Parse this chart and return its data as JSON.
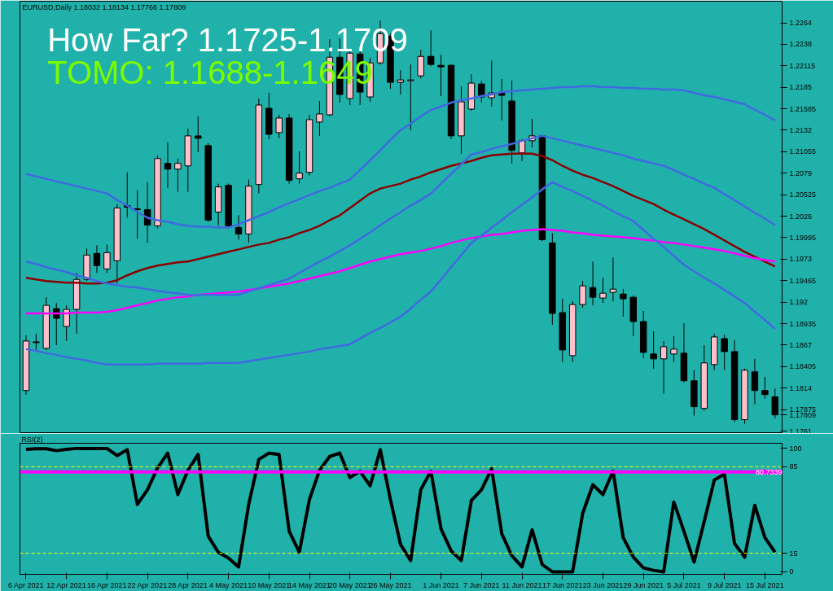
{
  "chart_data": [
    {
      "type": "candlestick",
      "title": "EURUSD,Daily  1.18032 1.18134 1.17766 1.17809",
      "categories": [
        null,
        null,
        null,
        null,
        null,
        null,
        null,
        null,
        null,
        null,
        null,
        null,
        null,
        null,
        null,
        null,
        null,
        null,
        null,
        null,
        null,
        null,
        null,
        null,
        null,
        null,
        null,
        null,
        null,
        null,
        null,
        null,
        null,
        null,
        null,
        null,
        null,
        null,
        null,
        null,
        null,
        null,
        null,
        null,
        null,
        null,
        null,
        null,
        null,
        null,
        null,
        null,
        null,
        null,
        null,
        null,
        null,
        null,
        null,
        null,
        null,
        null,
        null,
        null,
        null,
        null,
        null,
        null,
        null,
        null,
        null,
        null,
        null,
        null,
        null
      ],
      "ohlc": [
        [
          1.1811,
          1.1879,
          1.1806,
          1.1872
        ],
        [
          1.1871,
          1.1881,
          1.1861,
          1.187
        ],
        [
          1.1863,
          1.1926,
          1.1861,
          1.1916
        ],
        [
          1.1912,
          1.1919,
          1.1867,
          1.19
        ],
        [
          1.189,
          1.1916,
          1.1872,
          1.1911
        ],
        [
          1.1911,
          1.1956,
          1.1881,
          1.1948
        ],
        [
          1.1948,
          1.1986,
          1.1946,
          1.1978
        ],
        [
          1.198,
          1.199,
          1.1956,
          1.1965
        ],
        [
          1.1961,
          1.1991,
          1.1956,
          1.1981
        ],
        [
          1.1971,
          1.2041,
          1.1943,
          1.2036
        ],
        [
          1.2039,
          1.208,
          1.2024,
          1.2037
        ],
        [
          1.2035,
          1.2058,
          1.1998,
          1.2034
        ],
        [
          1.2034,
          1.2068,
          1.1993,
          1.2015
        ],
        [
          1.2014,
          1.2101,
          1.2011,
          1.2097
        ],
        [
          1.2091,
          1.2117,
          1.2061,
          1.2084
        ],
        [
          1.2084,
          1.2097,
          1.2056,
          1.2091
        ],
        [
          1.2088,
          1.2134,
          1.2056,
          1.2125
        ],
        [
          1.2125,
          1.2149,
          1.2105,
          1.2122
        ],
        [
          1.2113,
          1.2116,
          1.2019,
          1.2021
        ],
        [
          1.2031,
          1.2066,
          1.2014,
          1.2062
        ],
        [
          1.2064,
          1.2066,
          1.2011,
          1.2014
        ],
        [
          1.2012,
          1.2027,
          1.1997,
          1.2004
        ],
        [
          1.2004,
          1.2071,
          1.1993,
          1.2063
        ],
        [
          1.2065,
          1.2171,
          1.2054,
          1.2163
        ],
        [
          1.2159,
          1.2178,
          1.2121,
          1.2127
        ],
        [
          1.2129,
          1.2151,
          1.2122,
          1.2147
        ],
        [
          1.2147,
          1.2152,
          1.2066,
          1.207
        ],
        [
          1.2072,
          1.2106,
          1.2066,
          1.2079
        ],
        [
          1.208,
          1.2151,
          1.2076,
          1.2145
        ],
        [
          1.2142,
          1.2168,
          1.2125,
          1.2152
        ],
        [
          1.2151,
          1.2244,
          1.2149,
          1.2222
        ],
        [
          1.2222,
          1.2245,
          1.2166,
          1.2176
        ],
        [
          1.2171,
          1.2229,
          1.2163,
          1.2227
        ],
        [
          1.2226,
          1.2231,
          1.2163,
          1.2179
        ],
        [
          1.2173,
          1.2221,
          1.2167,
          1.2215
        ],
        [
          1.2215,
          1.2267,
          1.2213,
          1.2251
        ],
        [
          1.2248,
          1.2251,
          1.2183,
          1.2191
        ],
        [
          1.2191,
          1.2206,
          1.2176,
          1.2194
        ],
        [
          1.2193,
          1.2213,
          1.2132,
          1.2194
        ],
        [
          1.2199,
          1.2231,
          1.2196,
          1.2223
        ],
        [
          1.2223,
          1.2255,
          1.2211,
          1.2213
        ],
        [
          1.2212,
          1.2225,
          1.2174,
          1.221
        ],
        [
          1.2212,
          1.2213,
          1.2121,
          1.2125
        ],
        [
          1.2125,
          1.2186,
          1.2103,
          1.2167
        ],
        [
          1.2158,
          1.2201,
          1.2156,
          1.219
        ],
        [
          1.2189,
          1.2193,
          1.2166,
          1.2173
        ],
        [
          1.2172,
          1.2218,
          1.2161,
          1.2178
        ],
        [
          1.2178,
          1.2195,
          1.2144,
          1.2175
        ],
        [
          1.2168,
          1.2193,
          1.2091,
          1.2107
        ],
        [
          1.2104,
          1.2121,
          1.2094,
          1.2119
        ],
        [
          1.2119,
          1.2146,
          1.2111,
          1.2125
        ],
        [
          1.2125,
          1.2126,
          1.1995,
          1.1997
        ],
        [
          1.1993,
          1.2005,
          1.1892,
          1.1906
        ],
        [
          1.1907,
          1.1924,
          1.1846,
          1.1861
        ],
        [
          1.1854,
          1.1921,
          1.1846,
          1.1917
        ],
        [
          1.1917,
          1.1946,
          1.1913,
          1.194
        ],
        [
          1.1938,
          1.197,
          1.1916,
          1.1926
        ],
        [
          1.1925,
          1.195,
          1.1919,
          1.1931
        ],
        [
          1.1932,
          1.1975,
          1.1921,
          1.1936
        ],
        [
          1.193,
          1.1936,
          1.1902,
          1.1924
        ],
        [
          1.1926,
          1.1928,
          1.1878,
          1.1896
        ],
        [
          1.1896,
          1.1909,
          1.1851,
          1.1858
        ],
        [
          1.1856,
          1.1884,
          1.1838,
          1.185
        ],
        [
          1.185,
          1.1872,
          1.1807,
          1.1865
        ],
        [
          1.1856,
          1.1878,
          1.1846,
          1.1862
        ],
        [
          1.1857,
          1.1894,
          1.1821,
          1.1823
        ],
        [
          1.1823,
          1.1836,
          1.178,
          1.1791
        ],
        [
          1.1789,
          1.1867,
          1.1786,
          1.1845
        ],
        [
          1.1843,
          1.1881,
          1.1836,
          1.1877
        ],
        [
          1.1875,
          1.188,
          1.1836,
          1.1859
        ],
        [
          1.1859,
          1.1873,
          1.1772,
          1.1775
        ],
        [
          1.1775,
          1.1838,
          1.177,
          1.1836
        ],
        [
          1.1834,
          1.185,
          1.1794,
          1.1811
        ],
        [
          1.1811,
          1.1828,
          1.1801,
          1.1806
        ],
        [
          1.18032,
          1.18134,
          1.17766,
          1.17809
        ]
      ],
      "series": [
        {
          "type": "line",
          "color": "#8b0000",
          "values": [
            1.195,
            1.1948,
            1.1946,
            1.1945,
            1.1944,
            1.1944,
            1.1943,
            1.1943,
            1.1944,
            1.1947,
            1.1953,
            1.1958,
            1.1962,
            1.1965,
            1.1967,
            1.1969,
            1.197,
            1.1973,
            1.1976,
            1.1979,
            1.1982,
            1.1985,
            1.1988,
            1.1991,
            1.1993,
            1.1997,
            1.2,
            1.2005,
            1.2009,
            1.2014,
            1.2021,
            1.2027,
            1.2036,
            1.2045,
            1.2054,
            1.206,
            1.2063,
            1.2066,
            1.2071,
            1.2075,
            1.208,
            1.2084,
            1.2088,
            1.2091,
            1.2094,
            1.2098,
            1.2101,
            1.2102,
            1.2103,
            1.2103,
            1.2103,
            1.21,
            1.2095,
            1.2088,
            1.2082,
            1.2077,
            1.2073,
            1.2068,
            1.2063,
            1.2057,
            1.2051,
            1.2046,
            1.2041,
            1.2034,
            1.2028,
            1.2022,
            1.2016,
            1.201,
            1.2003,
            1.1996,
            1.1989,
            1.1982,
            1.1976,
            1.197,
            1.1964
          ]
        },
        {
          "type": "line",
          "color": "#ff00ff",
          "values": [
            1.1906,
            1.1906,
            1.1906,
            1.1906,
            1.1906,
            1.1907,
            1.1907,
            1.1907,
            1.1908,
            1.191,
            1.1913,
            1.1916,
            1.1919,
            1.1922,
            1.1924,
            1.1926,
            1.1927,
            1.1929,
            1.193,
            1.1931,
            1.1932,
            1.1933,
            1.1935,
            1.1937,
            1.1939,
            1.1941,
            1.1943,
            1.1946,
            1.1949,
            1.1952,
            1.1955,
            1.1958,
            1.1962,
            1.1966,
            1.197,
            1.1973,
            1.1976,
            1.1979,
            1.1981,
            1.1983,
            1.1986,
            1.1989,
            1.1993,
            1.1996,
            1.1999,
            1.2001,
            1.2003,
            1.2004,
            1.2006,
            1.2008,
            1.2009,
            1.201,
            1.2009,
            1.2008,
            1.2006,
            1.2005,
            1.2003,
            1.2002,
            1.2001,
            1.2,
            1.1999,
            1.1997,
            1.1996,
            1.1994,
            1.1993,
            1.1991,
            1.1989,
            1.1987,
            1.1985,
            1.1983,
            1.198,
            1.1977,
            1.1974,
            1.1972,
            1.197
          ]
        },
        {
          "type": "line",
          "color": "#4169e1",
          "values": [
            1.2078,
            1.2075,
            1.2072,
            1.2069,
            1.2066,
            1.2063,
            1.206,
            1.2057,
            1.2054,
            1.2046,
            1.2039,
            1.2031,
            1.2024,
            1.2021,
            1.2019,
            1.2016,
            1.2014,
            1.2013,
            1.2013,
            1.2012,
            1.2012,
            1.2016,
            1.2021,
            1.2026,
            1.2031,
            1.2037,
            1.2042,
            1.2047,
            1.2052,
            1.2057,
            1.2061,
            1.2066,
            1.2071,
            1.2083,
            1.2095,
            1.2107,
            1.212,
            1.2132,
            1.214,
            1.2149,
            1.2157,
            1.2161,
            1.2166,
            1.2169,
            1.2171,
            1.2174,
            1.2176,
            1.2179,
            1.218,
            1.2181,
            1.2182,
            1.2183,
            1.2184,
            1.2185,
            1.2185,
            1.2186,
            1.2186,
            1.2185,
            1.2185,
            1.2184,
            1.2184,
            1.2183,
            1.2183,
            1.2182,
            1.2182,
            1.2181,
            1.2178,
            1.2175,
            1.2173,
            1.217,
            1.2167,
            1.2164,
            1.2157,
            1.2151,
            1.2144
          ]
        },
        {
          "type": "line",
          "color": "#4169e1",
          "values": [
            1.197,
            1.1967,
            1.1963,
            1.196,
            1.1957,
            1.1953,
            1.195,
            1.1946,
            1.1943,
            1.1941,
            1.1939,
            1.1938,
            1.1936,
            1.1934,
            1.1932,
            1.1931,
            1.1929,
            1.1929,
            1.1929,
            1.1929,
            1.1929,
            1.1929,
            1.1933,
            1.1937,
            1.1941,
            1.1945,
            1.1949,
            1.1956,
            1.1963,
            1.197,
            1.1976,
            1.1983,
            1.199,
            1.1998,
            1.2006,
            1.2015,
            1.2023,
            1.2031,
            1.2039,
            1.2046,
            1.2054,
            1.2066,
            1.2078,
            1.209,
            1.2102,
            1.2105,
            1.2109,
            1.2112,
            1.2115,
            1.2119,
            1.2122,
            1.2125,
            1.2122,
            1.2119,
            1.2116,
            1.2113,
            1.211,
            1.2107,
            1.2104,
            1.2101,
            1.2097,
            1.2094,
            1.2091,
            1.2088,
            1.2083,
            1.2077,
            1.2072,
            1.2066,
            1.2061,
            1.2053,
            1.2046,
            1.2038,
            1.203,
            1.2023,
            1.2015
          ]
        },
        {
          "type": "line",
          "color": "#4169e1",
          "values": [
            1.1862,
            1.186,
            1.1857,
            1.1855,
            1.1852,
            1.185,
            1.1848,
            1.1845,
            1.1843,
            1.1843,
            1.1843,
            1.1843,
            1.1843,
            1.1844,
            1.1844,
            1.1844,
            1.1844,
            1.1844,
            1.1845,
            1.1845,
            1.1845,
            1.1845,
            1.1847,
            1.1849,
            1.1851,
            1.1853,
            1.1855,
            1.1857,
            1.1859,
            1.1862,
            1.1864,
            1.1866,
            1.1868,
            1.1875,
            1.1882,
            1.1888,
            1.1895,
            1.1902,
            1.1912,
            1.1923,
            1.1933,
            1.1948,
            1.1963,
            1.1978,
            1.1993,
            1.2002,
            1.2012,
            1.2021,
            1.2031,
            1.204,
            1.2049,
            1.2059,
            1.2068,
            1.2062,
            1.2057,
            1.2051,
            1.2045,
            1.2039,
            1.2032,
            1.2026,
            1.202,
            1.2009,
            1.1998,
            1.1988,
            1.1977,
            1.1966,
            1.1958,
            1.195,
            1.1943,
            1.1935,
            1.1927,
            1.1919,
            1.1908,
            1.1898,
            1.1887
          ]
        }
      ],
      "ylim": [
        1.1759,
        1.2291
      ],
      "yticks": [
        1.2264,
        1.2238,
        1.22115,
        1.2185,
        1.21585,
        1.2132,
        1.21055,
        1.2079,
        1.20525,
        1.2026,
        1.19995,
        1.1973,
        1.19465,
        1.192,
        1.18935,
        1.1867,
        1.18405,
        1.1814,
        1.17875,
        1.1761,
        {
          "value": 1.17809,
          "label": "1.17809"
        }
      ],
      "annotations": [
        "How Far? 1.1725-1.1709",
        "TOMO: 1.1688-1.1649"
      ],
      "tick_labels": "y"
    },
    {
      "type": "line",
      "title": "RSI(2)",
      "categories": [
        "6 Apr 2021",
        null,
        null,
        null,
        "12 Apr 2021",
        null,
        null,
        null,
        "16 Apr 2021",
        null,
        null,
        null,
        "22 Apr 2021",
        null,
        null,
        null,
        "28 Apr 2021",
        null,
        null,
        null,
        "4 May 2021",
        null,
        null,
        null,
        "10 May 2021",
        null,
        null,
        null,
        "14 May 2021",
        null,
        null,
        null,
        "20 May 2021",
        null,
        null,
        null,
        "26 May 2021",
        null,
        null,
        null,
        null,
        "1 Jun 2021",
        null,
        null,
        null,
        "7 Jun 2021",
        null,
        null,
        null,
        "11 Jun 2021",
        null,
        null,
        null,
        "17 Jun 2021",
        null,
        null,
        null,
        "23 Jun 2021",
        null,
        null,
        null,
        "29 Jun 2021",
        null,
        null,
        null,
        "5 Jul 2021",
        null,
        null,
        null,
        "9 Jul 2021",
        null,
        null,
        null,
        "15 Jul 2021",
        null
      ],
      "series": [
        {
          "color": "#000000",
          "values": [
            99,
            99.5,
            99.5,
            98,
            99,
            99.8,
            99.8,
            99.8,
            99.8,
            94,
            98.8,
            54.5,
            66.4,
            84.2,
            96,
            62.5,
            82.2,
            94.9,
            28.9,
            15.8,
            11.1,
            4,
            54.5,
            90.9,
            96,
            94.9,
            32.8,
            15.8,
            58.5,
            82.2,
            93.3,
            96,
            76.3,
            81.4,
            69.6,
            98.8,
            58.5,
            22.1,
            9.1,
            66.4,
            81.4,
            34.8,
            17,
            9.1,
            57.7,
            66.4,
            83.4,
            30.8,
            13,
            4,
            34,
            5.9,
            0,
            0,
            0,
            47.4,
            70.4,
            62.5,
            81.4,
            27.7,
            11.9,
            3.2,
            1.2,
            0,
            56.5,
            32.8,
            7.9,
            40.7,
            74.3,
            79,
            22.9,
            11.9,
            53.8,
            27.7,
            15.8
          ]
        }
      ],
      "ylim": [
        -2,
        104
      ],
      "yticks": [
        0,
        15,
        85,
        100
      ],
      "ref_lines": [
        {
          "axis": "y",
          "value": 85,
          "color": "#ffff00",
          "line_style": "dashed"
        },
        {
          "axis": "y",
          "value": 15,
          "color": "#ffff00",
          "line_style": "dashed"
        },
        {
          "axis": "y",
          "value": 80.7339,
          "label": "80.7339",
          "color": "#ff00ff"
        }
      ]
    }
  ]
}
